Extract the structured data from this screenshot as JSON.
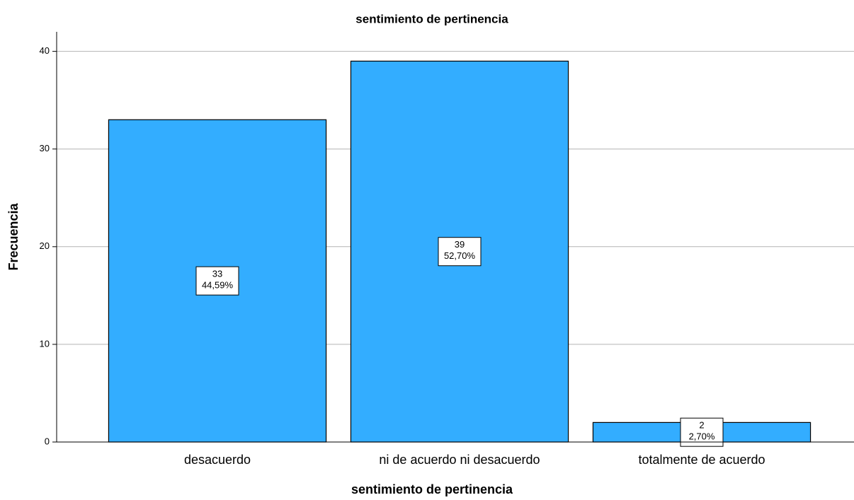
{
  "chart_data": {
    "type": "bar",
    "title": "sentimiento de pertinencia",
    "x_label": "sentimiento de pertinencia",
    "y_label": "Frecuencia",
    "categories": [
      "desacuerdo",
      "ni de acuerdo ni desacuerdo",
      "totalmente de acuerdo"
    ],
    "values": [
      33,
      39,
      2
    ],
    "percentages": [
      44.59,
      52.7,
      2.7
    ],
    "percentage_labels": [
      "44,59%",
      "52,70%",
      "2,70%"
    ],
    "color": "#33adff",
    "ylim": [
      0,
      42
    ],
    "yticks": [
      0,
      10,
      20,
      30,
      40
    ],
    "grid": true
  }
}
